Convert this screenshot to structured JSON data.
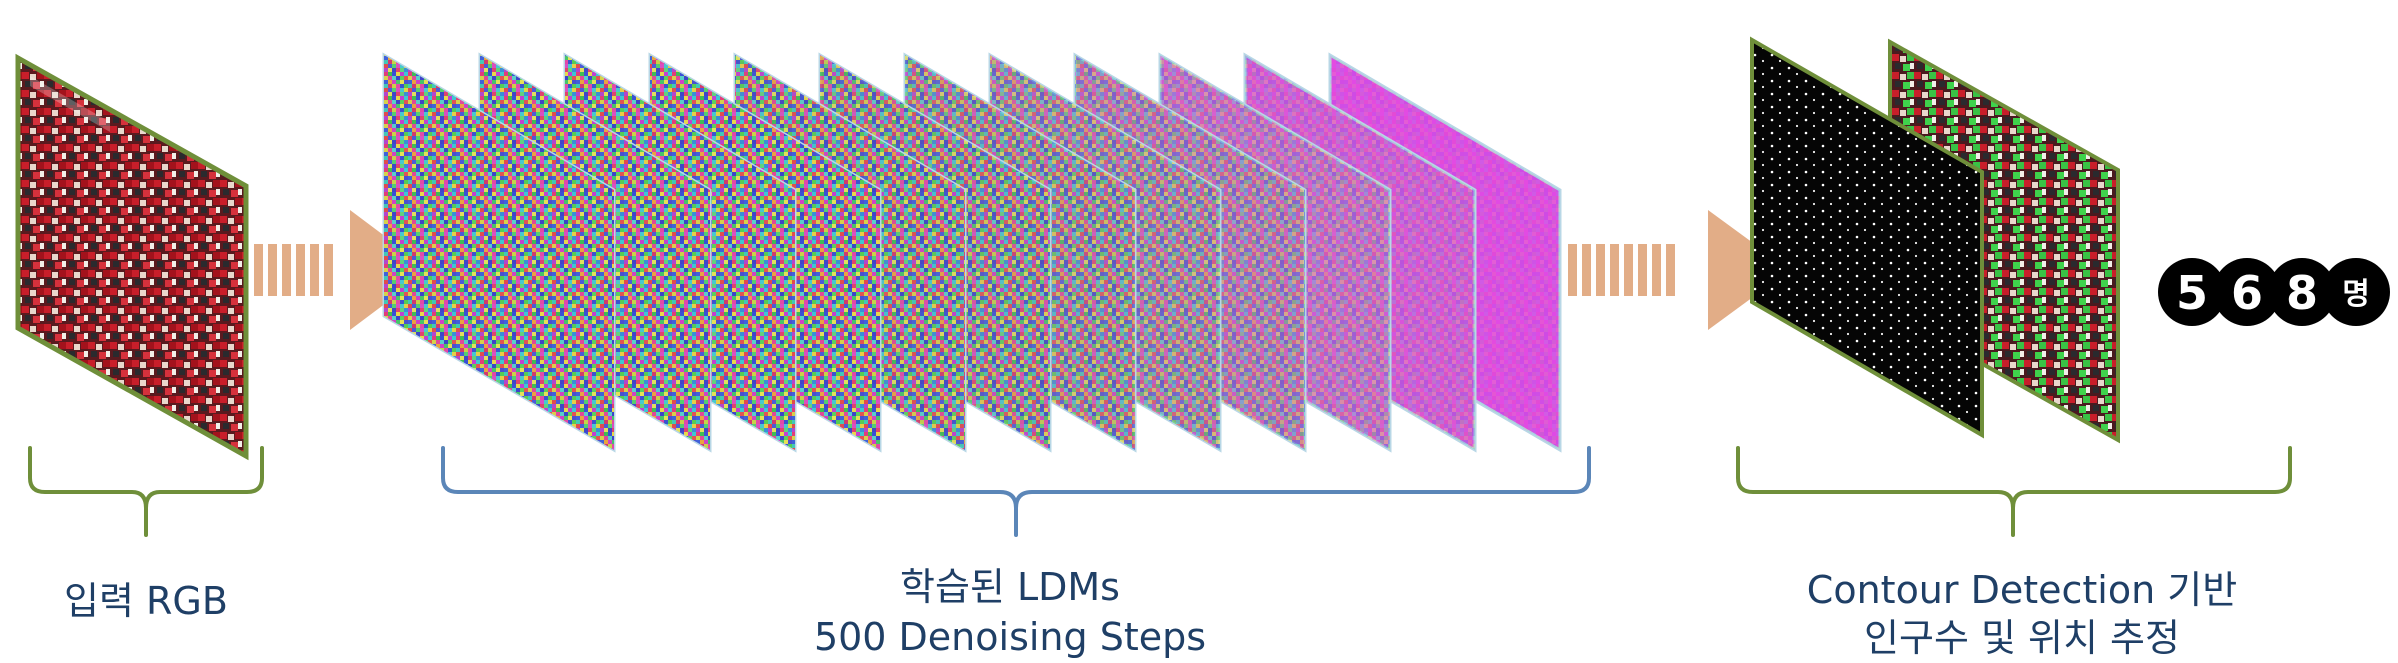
{
  "stages": {
    "input": {
      "label": "입력 RGB"
    },
    "ldm": {
      "label_line1": "학습된 LDMs",
      "label_line2": "500 Denoising Steps"
    },
    "detection": {
      "label_line1": "Contour Detection 기반",
      "label_line2": "인구수 및 위치 추정"
    }
  },
  "result": {
    "digits": [
      "5",
      "6",
      "8"
    ],
    "unit": "명"
  },
  "colors": {
    "input_frame": "#6f8f3a",
    "ldm_frame": "#b8d7e6",
    "detection_frame": "#6f8f3a",
    "arrow": "#e2ad87",
    "brace_input": "#6f8f3a",
    "brace_ldm": "#5b86b8",
    "brace_detection": "#6f8f3a",
    "caption": "#1f3f66",
    "badge": "#000000"
  },
  "icons": {
    "arrow": "dashed-right-arrow",
    "brace": "curly-brace"
  }
}
